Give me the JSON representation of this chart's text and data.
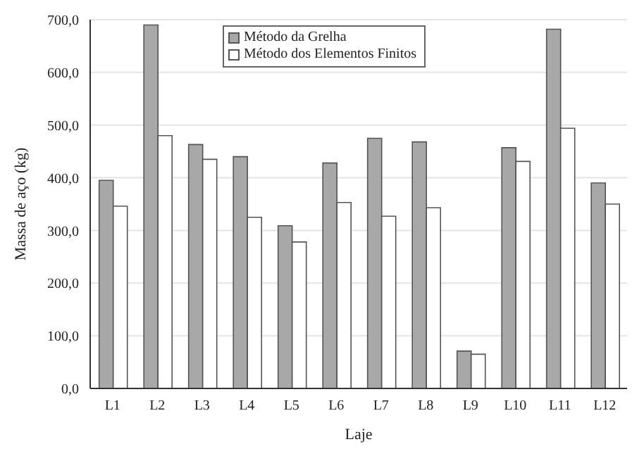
{
  "chart_data": {
    "type": "bar",
    "xlabel": "Laje",
    "ylabel": "Massa de aço (kg)",
    "categories": [
      "L1",
      "L2",
      "L3",
      "L4",
      "L5",
      "L6",
      "L7",
      "L8",
      "L9",
      "L10",
      "L11",
      "L12"
    ],
    "series": [
      {
        "name": "Método da Grelha",
        "color": "#a8a8a8",
        "values": [
          395,
          690,
          463,
          440,
          309,
          428,
          475,
          468,
          71,
          457,
          682,
          390
        ]
      },
      {
        "name": "Método dos Elementos Finitos",
        "color": "#ffffff",
        "values": [
          346,
          480,
          435,
          325,
          278,
          353,
          327,
          343,
          65,
          431,
          494,
          350
        ]
      }
    ],
    "ylim": [
      0,
      700
    ],
    "yticks": [
      {
        "value": 0,
        "label": "0,0"
      },
      {
        "value": 100,
        "label": "100,0"
      },
      {
        "value": 200,
        "label": "200,0"
      },
      {
        "value": 300,
        "label": "300,0"
      },
      {
        "value": 400,
        "label": "400,0"
      },
      {
        "value": 500,
        "label": "500,0"
      },
      {
        "value": 600,
        "label": "600,0"
      },
      {
        "value": 700,
        "label": "700,0"
      }
    ],
    "grid": "y",
    "legend": "top"
  }
}
